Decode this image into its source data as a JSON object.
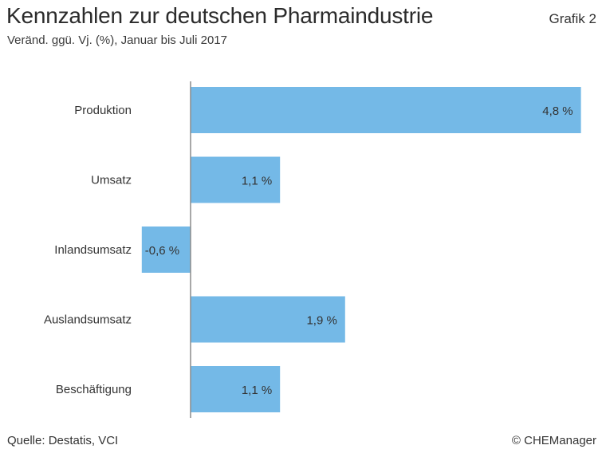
{
  "header": {
    "title": "Kennzahlen zur deutschen Pharmaindustrie",
    "subtitle": "Veränd. ggü. Vj. (%), Januar bis Juli 2017",
    "figure_label": "Grafik 2"
  },
  "footer": {
    "source": "Quelle: Destatis, VCI",
    "copyright": "© CHEManager"
  },
  "colors": {
    "bar": "#74b9e7",
    "axis": "#8c8c8c",
    "text": "#333333"
  },
  "chart_data": {
    "type": "bar",
    "orientation": "horizontal",
    "categories": [
      "Produktion",
      "Umsatz",
      "Inlandsumsatz",
      "Auslandsumsatz",
      "Beschäftigung"
    ],
    "values": [
      4.8,
      1.1,
      -0.6,
      1.9,
      1.1
    ],
    "value_labels": [
      "4,8 %",
      "1,1 %",
      "-0,6 %",
      "1,9 %",
      "1,1 %"
    ],
    "xlim": [
      -0.6,
      4.8
    ],
    "grid": false,
    "legend": "none"
  }
}
